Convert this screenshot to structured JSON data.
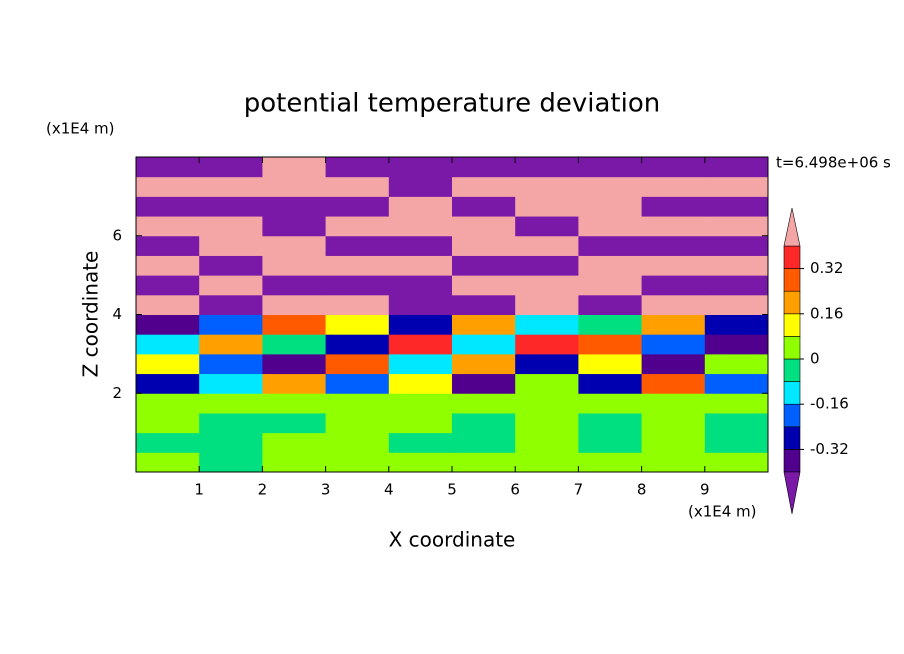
{
  "chart_data": {
    "type": "contour",
    "title": "potential temperature deviation",
    "x_label": "X coordinate",
    "y_label": "Z coordinate",
    "x_unit": "(x1E4 m)",
    "y_unit": "(x1E4 m)",
    "annotation": "t=6.498e+06 s",
    "xlim": [
      0,
      10
    ],
    "ylim": [
      0,
      8
    ],
    "xticks": [
      1,
      2,
      3,
      4,
      5,
      6,
      7,
      8,
      9
    ],
    "yticks": [
      2,
      4,
      6
    ],
    "z": [
      [
        0.04,
        -0.04,
        0.04,
        0.04,
        0.04,
        0.04,
        0.04,
        0.04,
        0.04,
        0.04
      ],
      [
        -0.04,
        -0.04,
        0.04,
        0.04,
        -0.04,
        -0.04,
        0.04,
        -0.04,
        0.04,
        -0.04
      ],
      [
        0.04,
        -0.04,
        -0.04,
        0.04,
        0.04,
        -0.04,
        0.04,
        -0.04,
        0.04,
        -0.04
      ],
      [
        0.04,
        0.04,
        0.04,
        0.04,
        0.04,
        0.04,
        0.04,
        0.04,
        0.04,
        0.04
      ],
      [
        -0.28,
        -0.12,
        0.2,
        -0.2,
        0.12,
        -0.36,
        0.04,
        -0.28,
        0.28,
        -0.2
      ],
      [
        0.12,
        -0.2,
        -0.36,
        0.28,
        -0.12,
        0.2,
        -0.28,
        0.12,
        -0.36,
        0.04
      ],
      [
        -0.12,
        0.2,
        -0.04,
        -0.28,
        0.36,
        -0.12,
        0.36,
        0.28,
        -0.2,
        -0.36
      ],
      [
        -0.36,
        -0.2,
        0.28,
        0.12,
        -0.28,
        0.2,
        -0.12,
        -0.04,
        0.2,
        -0.28
      ],
      [
        0.5,
        -0.5,
        0.5,
        0.5,
        -0.5,
        -0.5,
        0.5,
        -0.5,
        0.5,
        0.5
      ],
      [
        -0.5,
        0.5,
        -0.5,
        -0.5,
        -0.5,
        0.5,
        0.5,
        0.5,
        -0.5,
        -0.5
      ],
      [
        0.5,
        -0.5,
        0.5,
        0.5,
        0.5,
        -0.5,
        -0.5,
        0.5,
        0.5,
        0.5
      ],
      [
        -0.5,
        0.5,
        0.5,
        -0.5,
        -0.5,
        0.5,
        0.5,
        -0.5,
        -0.5,
        -0.5
      ],
      [
        0.5,
        0.5,
        -0.5,
        0.5,
        0.5,
        0.5,
        -0.5,
        0.5,
        0.5,
        0.5
      ],
      [
        -0.5,
        -0.5,
        -0.5,
        -0.5,
        0.5,
        -0.5,
        0.5,
        0.5,
        -0.5,
        -0.5
      ],
      [
        0.5,
        0.5,
        0.5,
        0.5,
        -0.5,
        0.5,
        0.5,
        0.5,
        0.5,
        0.5
      ],
      [
        -0.5,
        -0.5,
        0.5,
        -0.5,
        -0.5,
        -0.5,
        -0.5,
        -0.5,
        -0.5,
        -0.5
      ]
    ],
    "levels": [
      -0.4,
      -0.32,
      -0.24,
      -0.16,
      -0.08,
      0,
      0.08,
      0.16,
      0.24,
      0.32,
      0.4
    ],
    "colors": [
      "#7a18a8",
      "#50008c",
      "#0000b0",
      "#0060ff",
      "#00e8ff",
      "#00e080",
      "#90ff00",
      "#ffff00",
      "#ffa000",
      "#ff5a00",
      "#ff2828",
      "#f4a6a6"
    ],
    "colorbar_ticks": [
      0.32,
      0.16,
      0,
      -0.16,
      -0.32
    ]
  }
}
